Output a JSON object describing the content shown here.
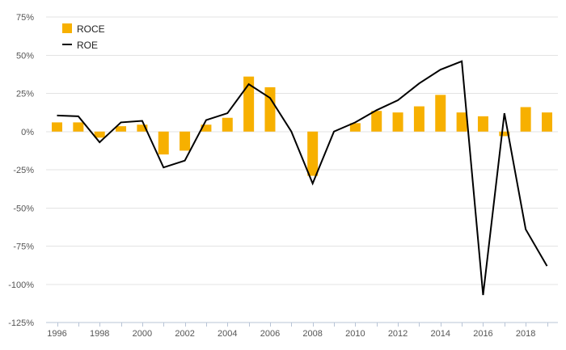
{
  "chart_data": {
    "type": "bar",
    "title": "",
    "xlabel": "",
    "ylabel": "",
    "x": [
      1996,
      1997,
      1998,
      1999,
      2000,
      2001,
      2002,
      2003,
      2004,
      2005,
      2006,
      2007,
      2008,
      2009,
      2010,
      2011,
      2012,
      2013,
      2014,
      2015,
      2016,
      2017,
      2018,
      2019
    ],
    "x_ticks": [
      "1996",
      "1998",
      "2000",
      "2002",
      "2004",
      "2006",
      "2008",
      "2010",
      "2012",
      "2014",
      "2016",
      "2018"
    ],
    "ylim": [
      -125,
      75
    ],
    "y_ticks": [
      75,
      50,
      25,
      0,
      -25,
      -50,
      -75,
      -100,
      -125
    ],
    "y_tick_labels": [
      "75%",
      "50%",
      "25%",
      "0%",
      "-25%",
      "-50%",
      "-75%",
      "-100%",
      "-125%"
    ],
    "grid": true,
    "legend_position": "top-left",
    "series": [
      {
        "name": "ROCE",
        "type": "bar",
        "color": "#F7B000",
        "values": [
          6,
          6,
          -4,
          3.5,
          4.5,
          -15,
          -12.5,
          4.5,
          9,
          36,
          29,
          0,
          -29,
          0,
          5.5,
          13.5,
          12.5,
          16.5,
          24,
          12.5,
          10,
          -3,
          16,
          12.5
        ]
      },
      {
        "name": "ROE",
        "type": "line",
        "color": "#000000",
        "values": [
          10.5,
          10,
          -7,
          6,
          7,
          -23.5,
          -19,
          7.5,
          12,
          31,
          22,
          0,
          -34,
          0,
          6,
          14,
          20.5,
          31.5,
          40.5,
          46,
          -107,
          12,
          -64,
          -88
        ]
      }
    ]
  }
}
